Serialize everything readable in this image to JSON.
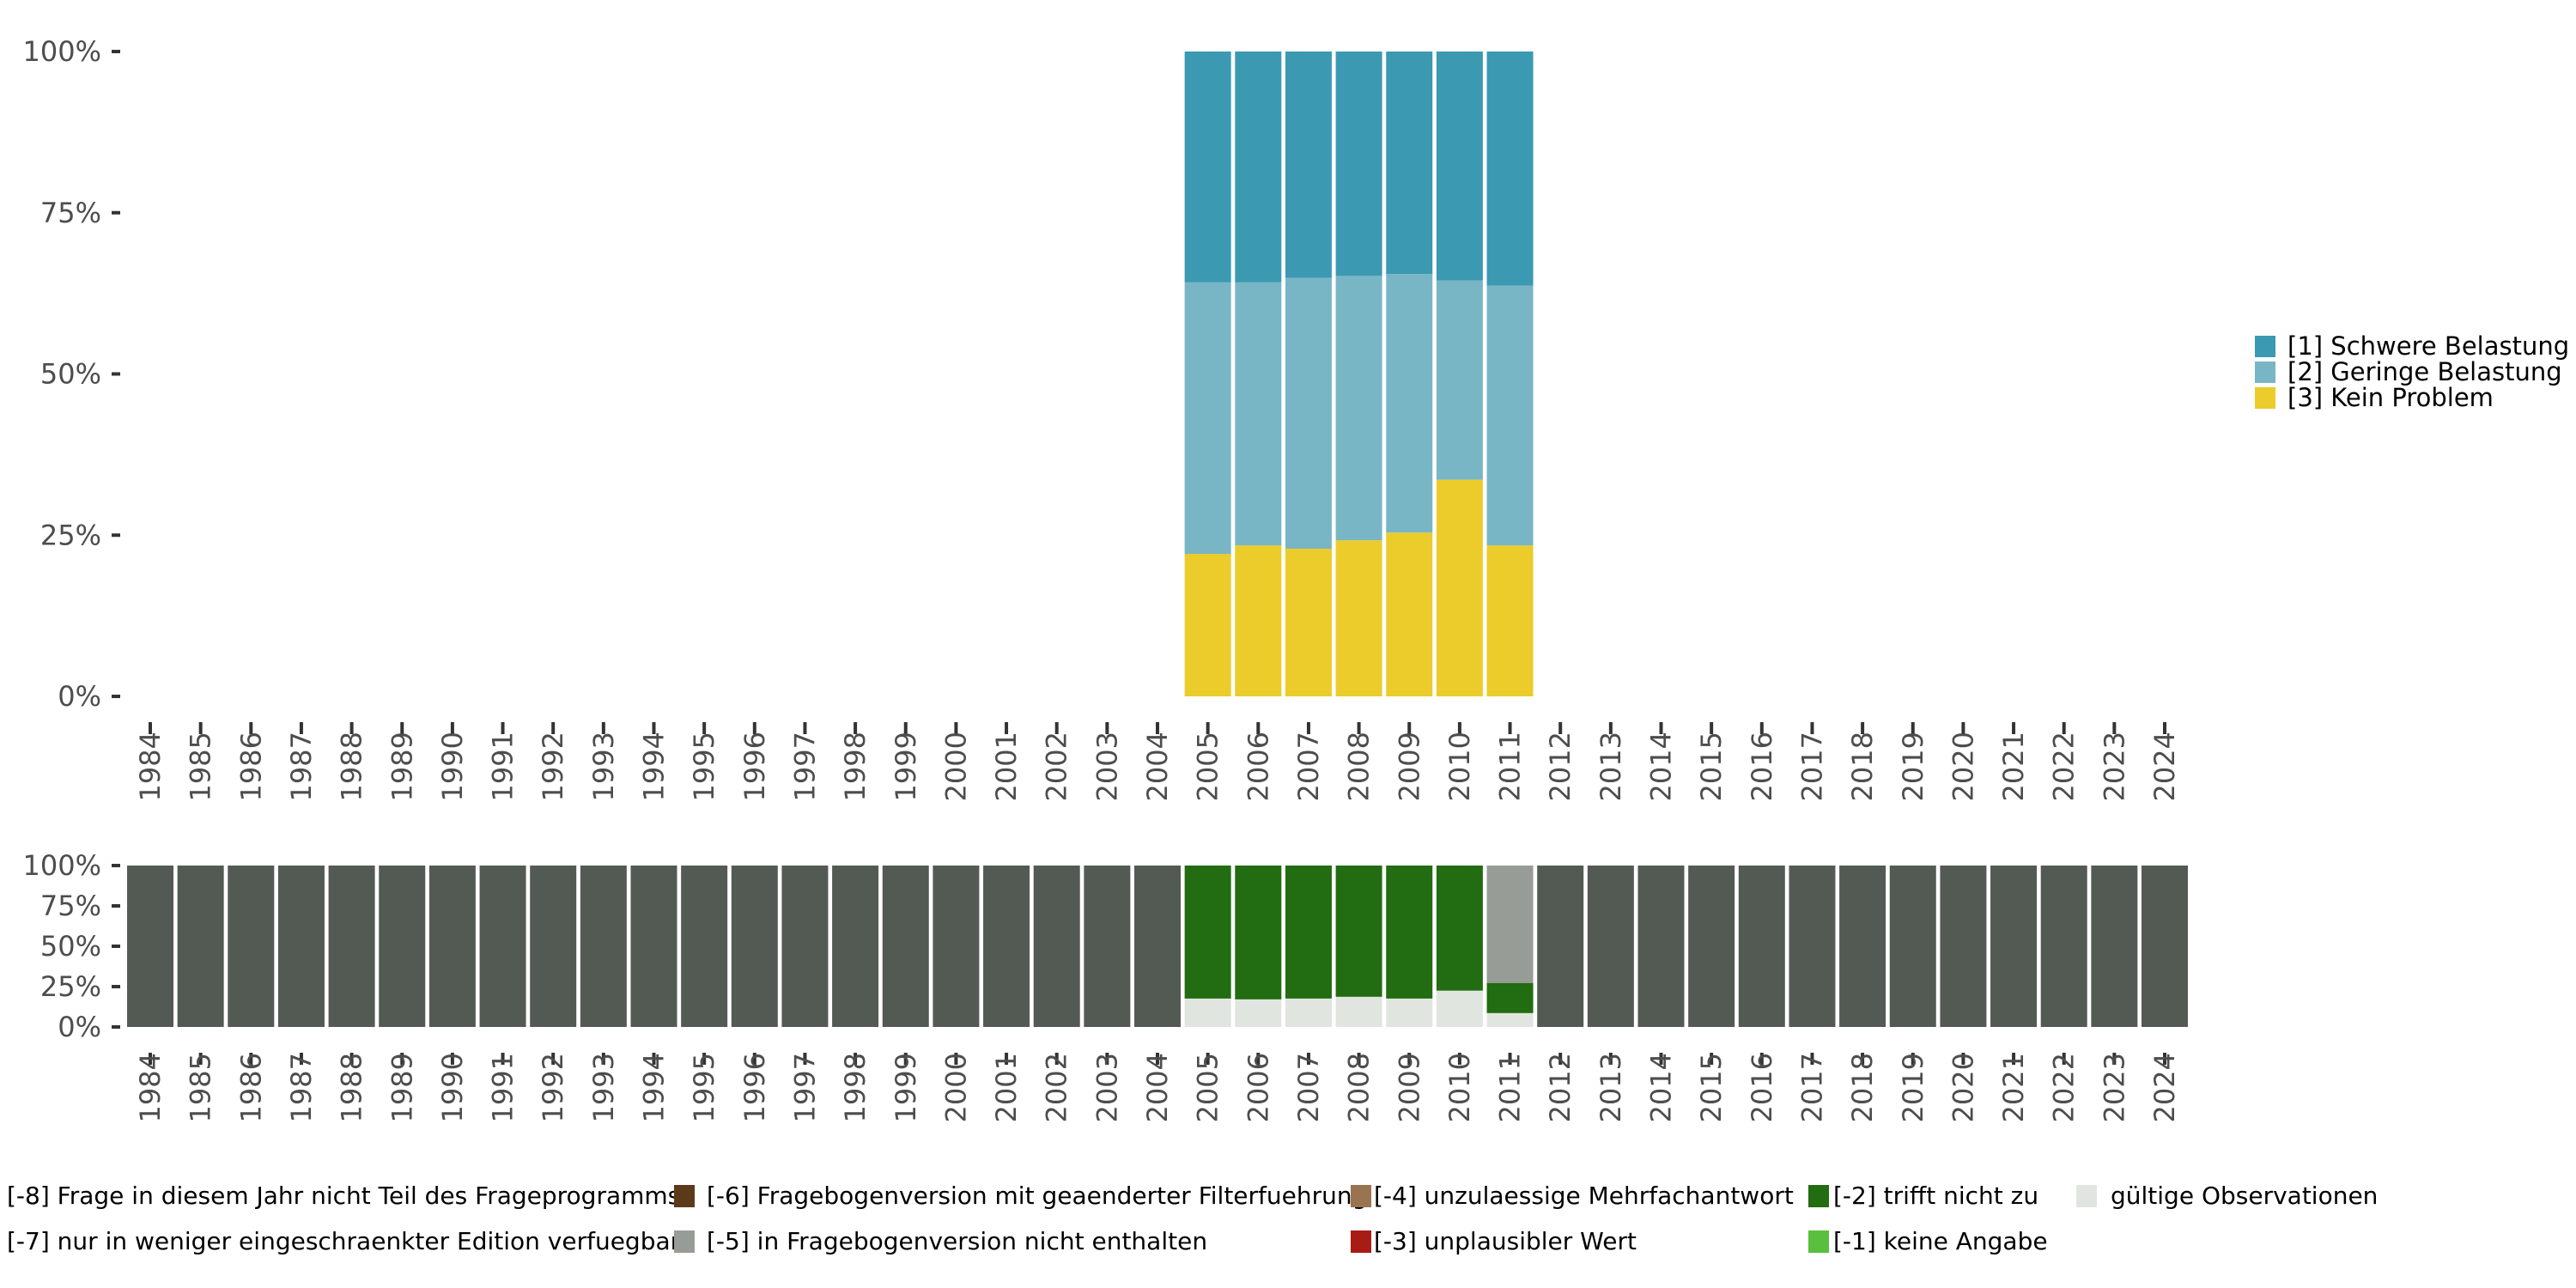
{
  "chart_data": [
    {
      "type": "bar",
      "stacked": true,
      "title": "",
      "xlabel": "",
      "ylabel": "",
      "ylim": [
        0,
        100
      ],
      "y_ticks": [
        "0%",
        "25%",
        "50%",
        "75%",
        "100%"
      ],
      "categories": [
        "1984",
        "1985",
        "1986",
        "1987",
        "1988",
        "1989",
        "1990",
        "1991",
        "1992",
        "1993",
        "1994",
        "1995",
        "1996",
        "1997",
        "1998",
        "1999",
        "2000",
        "2001",
        "2002",
        "2003",
        "2004",
        "2005",
        "2006",
        "2007",
        "2008",
        "2009",
        "2010",
        "2011",
        "2012",
        "2013",
        "2014",
        "2015",
        "2016",
        "2017",
        "2018",
        "2019",
        "2020",
        "2021",
        "2022",
        "2023",
        "2024"
      ],
      "legend_position": "right",
      "series": [
        {
          "name": "[3] Kein Problem",
          "color": "#ebcc2a",
          "values": {
            "2005": 22.1,
            "2006": 23.4,
            "2007": 22.9,
            "2008": 24.2,
            "2009": 25.4,
            "2010": 33.6,
            "2011": 23.4
          }
        },
        {
          "name": "[2] Geringe Belastung",
          "color": "#79b6c5",
          "values": {
            "2005": 42.1,
            "2006": 40.8,
            "2007": 42.0,
            "2008": 41.0,
            "2009": 40.1,
            "2010": 30.9,
            "2011": 40.3
          }
        },
        {
          "name": "[1] Schwere Belastung",
          "color": "#3c99b2",
          "values": {
            "2005": 35.8,
            "2006": 35.8,
            "2007": 35.1,
            "2008": 34.8,
            "2009": 34.5,
            "2010": 35.5,
            "2011": 36.3
          }
        }
      ],
      "legend_order": [
        "[1] Schwere Belastung",
        "[2] Geringe Belastung",
        "[3] Kein Problem"
      ]
    },
    {
      "type": "bar",
      "stacked": true,
      "title": "",
      "xlabel": "",
      "ylabel": "",
      "ylim": [
        0,
        100
      ],
      "y_ticks": [
        "0%",
        "25%",
        "50%",
        "75%",
        "100%"
      ],
      "categories": [
        "1984",
        "1985",
        "1986",
        "1987",
        "1988",
        "1989",
        "1990",
        "1991",
        "1992",
        "1993",
        "1994",
        "1995",
        "1996",
        "1997",
        "1998",
        "1999",
        "2000",
        "2001",
        "2002",
        "2003",
        "2004",
        "2005",
        "2006",
        "2007",
        "2008",
        "2009",
        "2010",
        "2011",
        "2012",
        "2013",
        "2014",
        "2015",
        "2016",
        "2017",
        "2018",
        "2019",
        "2020",
        "2021",
        "2022",
        "2023",
        "2024"
      ],
      "legend_position": "bottom",
      "series": [
        {
          "name": "gültige Observationen",
          "color": "#e0e5e0",
          "values": {
            "2005": 17.6,
            "2006": 17.1,
            "2007": 17.6,
            "2008": 18.7,
            "2009": 17.6,
            "2010": 22.5,
            "2011": 8.6
          }
        },
        {
          "name": "[-2] trifft nicht zu",
          "color": "#226c11",
          "values": {
            "2005": 82.4,
            "2006": 82.9,
            "2007": 82.4,
            "2008": 81.3,
            "2009": 82.4,
            "2010": 77.5,
            "2011": 18.7
          }
        },
        {
          "name": "[-5] in Fragebogenversion nicht enthalten",
          "color": "#989c96",
          "values": {
            "2011": 72.7
          }
        },
        {
          "name": "[-8] Frage in diesem Jahr nicht Teil des Frageprogramms",
          "color": "#535a53",
          "values": {
            "1984": 100,
            "1985": 100,
            "1986": 100,
            "1987": 100,
            "1988": 100,
            "1989": 100,
            "1990": 100,
            "1991": 100,
            "1992": 100,
            "1993": 100,
            "1994": 100,
            "1995": 100,
            "1996": 100,
            "1997": 100,
            "1998": 100,
            "1999": 100,
            "2000": 100,
            "2001": 100,
            "2002": 100,
            "2003": 100,
            "2004": 100,
            "2012": 100,
            "2013": 100,
            "2014": 100,
            "2015": 100,
            "2016": 100,
            "2017": 100,
            "2018": 100,
            "2019": 100,
            "2020": 100,
            "2021": 100,
            "2022": 100,
            "2023": 100,
            "2024": 100
          }
        }
      ],
      "legend_items": [
        {
          "label": "[-8] Frage in diesem Jahr nicht Teil des Frageprogramms",
          "color": "#535a53"
        },
        {
          "label": "[-7] nur in weniger eingeschraenkter Edition verfuegbar",
          "color": "#989c96"
        },
        {
          "label": "[-6] Fragebogenversion mit geaenderter Filterfuehrung",
          "color": "#5b3a1a"
        },
        {
          "label": "[-5] in Fragebogenversion nicht enthalten",
          "color": "#989c96"
        },
        {
          "label": "[-4] unzulaessige Mehrfachantwort",
          "color": "#9a7350"
        },
        {
          "label": "[-3] unplausibler Wert",
          "color": "#a81c16"
        },
        {
          "label": "[-2] trifft nicht zu",
          "color": "#226c11"
        },
        {
          "label": "[-1] keine Angabe",
          "color": "#5abf3f"
        },
        {
          "label": "gültige Observationen",
          "color": "#e0e5e0"
        }
      ]
    }
  ]
}
